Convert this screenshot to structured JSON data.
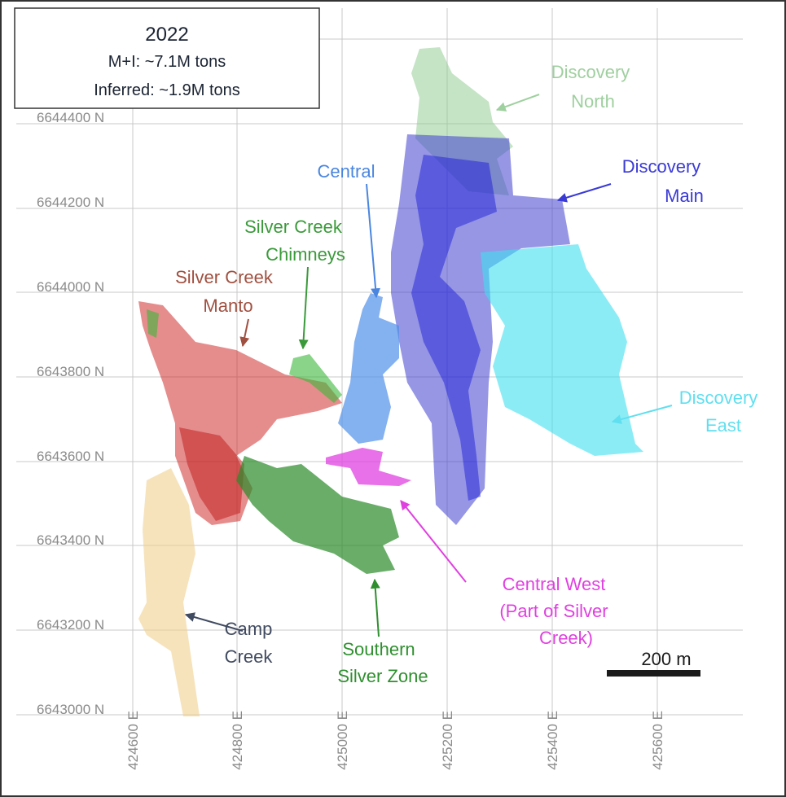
{
  "info_box": {
    "year": "2022",
    "line1": "M+I: ~7.1M tons",
    "line2": "Inferred: ~1.9M tons"
  },
  "northing_labels": [
    "6644400 N",
    "6644200 N",
    "6644000 N",
    "6643800 N",
    "6643600 N",
    "6643400 N",
    "6643200 N",
    "6643000 N"
  ],
  "easting_labels": [
    "424600 E",
    "424800 E",
    "425000 E",
    "425200 E",
    "425400 E",
    "425600 E"
  ],
  "zones": [
    {
      "lines": [
        "Discovery",
        "North"
      ]
    },
    {
      "lines": [
        "Discovery",
        "Main"
      ]
    },
    {
      "lines": [
        "Central"
      ]
    },
    {
      "lines": [
        "Silver Creek",
        "Chimneys"
      ]
    },
    {
      "lines": [
        "Silver Creek",
        "Manto"
      ]
    },
    {
      "lines": [
        "Discovery",
        "East"
      ]
    },
    {
      "lines": [
        "Central West",
        "(Part of Silver",
        "Creek)"
      ]
    },
    {
      "lines": [
        "Southern",
        "Silver Zone"
      ]
    },
    {
      "lines": [
        "Camp",
        "Creek"
      ]
    }
  ],
  "scale_bar": "200 m"
}
